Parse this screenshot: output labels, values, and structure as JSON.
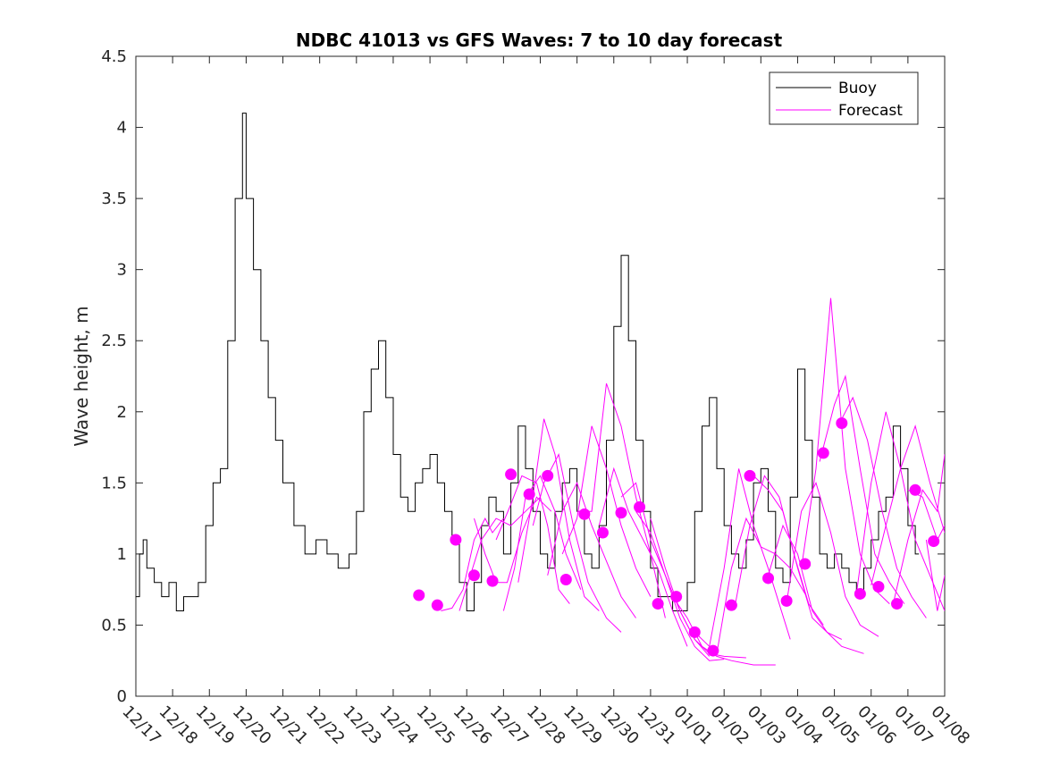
{
  "chart_data": {
    "type": "line",
    "title": "NDBC 41013 vs GFS Waves: 7 to 10 day forecast",
    "xlabel": "",
    "ylabel": "Wave height, m",
    "ylim": [
      0,
      4.5
    ],
    "xlim": [
      0,
      22
    ],
    "yticks": [
      0,
      0.5,
      1,
      1.5,
      2,
      2.5,
      3,
      3.5,
      4,
      4.5
    ],
    "ytick_labels": [
      "0",
      "0.5",
      "1",
      "1.5",
      "2",
      "2.5",
      "3",
      "3.5",
      "4",
      "4.5"
    ],
    "xtick_labels": [
      "12/17",
      "12/18",
      "12/19",
      "12/20",
      "12/21",
      "12/22",
      "12/23",
      "12/24",
      "12/25",
      "12/26",
      "12/27",
      "12/28",
      "12/29",
      "12/30",
      "12/31",
      "01/01",
      "01/02",
      "01/03",
      "01/04",
      "01/05",
      "01/06",
      "01/07",
      "01/08"
    ],
    "legend": {
      "position": "top-right",
      "entries": [
        {
          "name": "Buoy",
          "color": "#000000"
        },
        {
          "name": "Forecast",
          "color": "#ff00ff"
        }
      ]
    },
    "series": [
      {
        "name": "Buoy",
        "color": "#000000",
        "x": [
          0,
          0.1,
          0.2,
          0.3,
          0.5,
          0.7,
          0.9,
          1.1,
          1.3,
          1.5,
          1.7,
          1.9,
          2.1,
          2.3,
          2.5,
          2.7,
          2.9,
          3.0,
          3.2,
          3.4,
          3.6,
          3.8,
          4.0,
          4.3,
          4.6,
          4.9,
          5.2,
          5.5,
          5.8,
          6.0,
          6.2,
          6.4,
          6.6,
          6.8,
          7.0,
          7.2,
          7.4,
          7.6,
          7.8,
          8.0,
          8.2,
          8.4,
          8.6,
          8.8,
          9.0,
          9.2,
          9.4,
          9.6,
          9.8,
          10.0,
          10.2,
          10.4,
          10.6,
          10.8,
          11.0,
          11.2,
          11.4,
          11.6,
          11.8,
          12.0,
          12.2,
          12.4,
          12.6,
          12.8,
          13.0,
          13.2,
          13.4,
          13.6,
          13.8,
          14.0,
          14.2,
          14.4,
          14.6,
          14.8,
          15.0,
          15.2,
          15.4,
          15.6,
          15.8,
          16.0,
          16.2,
          16.4,
          16.6,
          16.8,
          17.0,
          17.2,
          17.4,
          17.6,
          17.8,
          18.0,
          18.2,
          18.4,
          18.6,
          18.8,
          19.0,
          19.2,
          19.4,
          19.6,
          19.8,
          20.0,
          20.2,
          20.4,
          20.6,
          20.8,
          21.0,
          21.2,
          21.3
        ],
        "values": [
          0.7,
          1.0,
          1.1,
          0.9,
          0.8,
          0.7,
          0.8,
          0.6,
          0.7,
          0.7,
          0.8,
          1.2,
          1.5,
          1.6,
          2.5,
          3.5,
          4.1,
          3.5,
          3.0,
          2.5,
          2.1,
          1.8,
          1.5,
          1.2,
          1.0,
          1.1,
          1.0,
          0.9,
          1.0,
          1.3,
          2.0,
          2.3,
          2.5,
          2.1,
          1.7,
          1.4,
          1.3,
          1.5,
          1.6,
          1.7,
          1.5,
          1.3,
          1.1,
          0.8,
          0.6,
          0.8,
          1.2,
          1.4,
          1.3,
          1.0,
          1.5,
          1.9,
          1.6,
          1.3,
          1.0,
          0.9,
          1.3,
          1.5,
          1.6,
          1.3,
          1.0,
          0.9,
          1.2,
          1.8,
          2.6,
          3.1,
          2.5,
          1.8,
          1.3,
          0.9,
          0.7,
          0.7,
          0.6,
          0.6,
          0.8,
          1.3,
          1.9,
          2.1,
          1.6,
          1.2,
          1.0,
          0.9,
          1.1,
          1.5,
          1.6,
          1.3,
          0.9,
          0.8,
          1.4,
          2.3,
          1.8,
          1.4,
          1.0,
          0.9,
          1.0,
          0.9,
          0.8,
          0.7,
          0.9,
          1.1,
          1.3,
          1.4,
          1.9,
          1.6,
          1.2,
          1.0,
          1.0
        ]
      },
      {
        "name": "Forecast",
        "color": "#ff00ff",
        "lines": [
          {
            "x": [
              8.3,
              8.6,
              8.9,
              9.2,
              9.5,
              9.7,
              10.0
            ],
            "values": [
              0.6,
              0.62,
              0.75,
              1.1,
              1.25,
              1.15,
              1.25
            ]
          },
          {
            "x": [
              8.8,
              9.1,
              9.4,
              9.8,
              10.2,
              10.6,
              11.0
            ],
            "values": [
              0.6,
              0.85,
              1.1,
              1.25,
              1.2,
              1.3,
              1.4
            ]
          },
          {
            "x": [
              9.2,
              9.5,
              9.8,
              10.1,
              10.5,
              10.9,
              11.3
            ],
            "values": [
              1.25,
              1.0,
              0.8,
              0.8,
              1.15,
              1.4,
              1.3
            ]
          },
          {
            "x": [
              9.8,
              10.2,
              10.5,
              10.9,
              11.2,
              11.5,
              11.8
            ],
            "values": [
              1.1,
              1.35,
              1.55,
              1.5,
              1.2,
              0.75,
              0.65
            ]
          },
          {
            "x": [
              10.0,
              10.3,
              10.6,
              11.0,
              11.4,
              11.7,
              12.1
            ],
            "values": [
              0.6,
              0.9,
              1.4,
              1.55,
              1.3,
              1.0,
              0.75
            ]
          },
          {
            "x": [
              10.4,
              10.8,
              11.1,
              11.4,
              11.8,
              12.2,
              12.6
            ],
            "values": [
              0.8,
              1.4,
              1.95,
              1.7,
              1.1,
              0.7,
              0.6
            ]
          },
          {
            "x": [
              10.8,
              11.1,
              11.5,
              11.9,
              12.3,
              12.8,
              13.2
            ],
            "values": [
              1.2,
              1.5,
              1.7,
              1.2,
              0.8,
              0.55,
              0.45
            ]
          },
          {
            "x": [
              11.2,
              11.6,
              12.0,
              12.4,
              12.8,
              13.2,
              13.6
            ],
            "values": [
              0.85,
              1.3,
              1.5,
              1.2,
              0.95,
              0.7,
              0.55
            ]
          },
          {
            "x": [
              11.6,
              12.0,
              12.4,
              12.8,
              13.2,
              13.6,
              14.0
            ],
            "values": [
              1.0,
              1.25,
              1.9,
              1.6,
              1.2,
              0.9,
              0.7
            ]
          },
          {
            "x": [
              12.0,
              12.4,
              12.8,
              13.2,
              13.6,
              14.0,
              14.4
            ],
            "values": [
              1.3,
              1.3,
              2.2,
              1.9,
              1.4,
              1.0,
              0.55
            ]
          },
          {
            "x": [
              12.6,
              13.0,
              13.4,
              13.8,
              14.2,
              14.6,
              15.0
            ],
            "values": [
              1.2,
              1.6,
              1.3,
              1.1,
              0.9,
              0.6,
              0.35
            ]
          },
          {
            "x": [
              13.2,
              13.6,
              14.0,
              14.4,
              14.8,
              15.2,
              15.6
            ],
            "values": [
              1.4,
              1.5,
              1.1,
              0.85,
              0.6,
              0.4,
              0.28
            ]
          },
          {
            "x": [
              13.6,
              14.0,
              14.4,
              14.8,
              15.2,
              15.6,
              16.0
            ],
            "values": [
              1.3,
              1.15,
              0.85,
              0.55,
              0.35,
              0.25,
              0.26
            ]
          },
          {
            "x": [
              14.0,
              14.4,
              14.8,
              15.2,
              15.6,
              16.0,
              16.6
            ],
            "values": [
              1.25,
              0.9,
              0.6,
              0.4,
              0.3,
              0.28,
              0.27
            ]
          },
          {
            "x": [
              14.6,
              15.0,
              15.4,
              15.8,
              16.2,
              16.8,
              17.4
            ],
            "values": [
              0.7,
              0.55,
              0.35,
              0.28,
              0.25,
              0.22,
              0.22
            ]
          },
          {
            "x": [
              15.2,
              15.6,
              16.0,
              16.4,
              16.8,
              17.2,
              17.8
            ],
            "values": [
              0.45,
              0.35,
              0.9,
              1.6,
              1.2,
              0.9,
              0.4
            ]
          },
          {
            "x": [
              15.8,
              16.2,
              16.6,
              17.0,
              17.4,
              17.8,
              18.2
            ],
            "values": [
              0.3,
              0.9,
              1.25,
              1.05,
              1.0,
              0.9,
              0.72
            ]
          },
          {
            "x": [
              16.3,
              16.7,
              17.1,
              17.5,
              17.9,
              18.3,
              18.7
            ],
            "values": [
              0.64,
              1.2,
              1.55,
              1.4,
              1.0,
              0.65,
              0.5
            ]
          },
          {
            "x": [
              16.8,
              17.2,
              17.6,
              18.0,
              18.4,
              18.8,
              19.2
            ],
            "values": [
              1.55,
              1.45,
              1.3,
              0.9,
              0.55,
              0.45,
              0.4
            ]
          },
          {
            "x": [
              17.2,
              17.6,
              18.0,
              18.4,
              18.8,
              19.2,
              19.8
            ],
            "values": [
              0.85,
              1.2,
              1.0,
              0.6,
              0.45,
              0.35,
              0.3
            ]
          },
          {
            "x": [
              17.7,
              18.1,
              18.5,
              18.9,
              19.3,
              19.7,
              20.2
            ],
            "values": [
              0.66,
              1.3,
              1.5,
              1.15,
              0.7,
              0.5,
              0.42
            ]
          },
          {
            "x": [
              18.1,
              18.5,
              18.9,
              19.3,
              19.7,
              20.1,
              20.5
            ],
            "values": [
              0.9,
              1.6,
              2.8,
              1.6,
              1.0,
              0.75,
              0.65
            ]
          },
          {
            "x": [
              18.6,
              19.0,
              19.3,
              19.7,
              20.1,
              20.5,
              20.9
            ],
            "values": [
              1.65,
              2.05,
              2.25,
              1.6,
              1.0,
              0.8,
              0.65
            ]
          },
          {
            "x": [
              19.1,
              19.5,
              19.9,
              20.3,
              20.7,
              21.1,
              21.5
            ],
            "values": [
              1.9,
              2.1,
              1.8,
              1.3,
              0.9,
              0.7,
              0.55
            ]
          },
          {
            "x": [
              19.6,
              20.0,
              20.4,
              20.8,
              21.2,
              21.6,
              22.0
            ],
            "values": [
              0.72,
              1.5,
              2.0,
              1.6,
              1.1,
              0.85,
              0.6
            ]
          },
          {
            "x": [
              20.0,
              20.4,
              20.8,
              21.2,
              21.6,
              22.0
            ],
            "values": [
              0.78,
              1.2,
              1.6,
              1.9,
              1.5,
              1.15
            ]
          },
          {
            "x": [
              20.6,
              21.0,
              21.4,
              21.8,
              22.0
            ],
            "values": [
              0.65,
              1.1,
              1.45,
              1.3,
              1.7
            ]
          },
          {
            "x": [
              21.0,
              21.4,
              21.8,
              22.0
            ],
            "values": [
              1.45,
              1.4,
              1.1,
              1.2
            ]
          },
          {
            "x": [
              21.5,
              21.8,
              22.0
            ],
            "values": [
              1.1,
              0.6,
              0.85
            ]
          }
        ],
        "markers": [
          {
            "x": 7.7,
            "y": 0.71
          },
          {
            "x": 8.2,
            "y": 0.64
          },
          {
            "x": 8.7,
            "y": 1.1
          },
          {
            "x": 9.2,
            "y": 0.85
          },
          {
            "x": 9.7,
            "y": 0.81
          },
          {
            "x": 10.2,
            "y": 1.56
          },
          {
            "x": 10.7,
            "y": 1.42
          },
          {
            "x": 11.2,
            "y": 1.55
          },
          {
            "x": 11.7,
            "y": 0.82
          },
          {
            "x": 12.2,
            "y": 1.28
          },
          {
            "x": 12.7,
            "y": 1.15
          },
          {
            "x": 13.2,
            "y": 1.29
          },
          {
            "x": 13.7,
            "y": 1.33
          },
          {
            "x": 14.2,
            "y": 0.65
          },
          {
            "x": 14.7,
            "y": 0.7
          },
          {
            "x": 15.2,
            "y": 0.45
          },
          {
            "x": 15.7,
            "y": 0.32
          },
          {
            "x": 16.2,
            "y": 0.64
          },
          {
            "x": 16.7,
            "y": 1.55
          },
          {
            "x": 17.2,
            "y": 0.83
          },
          {
            "x": 17.7,
            "y": 0.67
          },
          {
            "x": 18.2,
            "y": 0.93
          },
          {
            "x": 18.7,
            "y": 1.71
          },
          {
            "x": 19.2,
            "y": 1.92
          },
          {
            "x": 19.7,
            "y": 0.72
          },
          {
            "x": 20.2,
            "y": 0.77
          },
          {
            "x": 20.7,
            "y": 0.65
          },
          {
            "x": 21.2,
            "y": 1.45
          },
          {
            "x": 21.7,
            "y": 1.09
          }
        ]
      }
    ]
  }
}
